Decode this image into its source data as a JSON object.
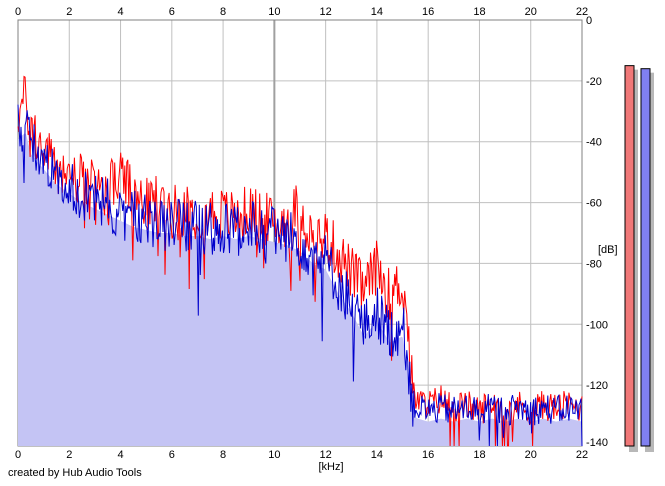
{
  "credit": "created by Hub Audio Tools",
  "colors": {
    "background": "#ffffff",
    "plot_background": "#ffffff",
    "grid": "#c0c0c0",
    "fill": "#c4c4f4",
    "left_channel": "#ff0000",
    "right_channel": "#0000cc",
    "left_meter": "#f07878",
    "right_meter": "#8080f0",
    "meter_shadow": "#b8b8b8"
  },
  "chart_data": {
    "type": "line",
    "xlabel": "[kHz]",
    "ylabel": "[dB]",
    "xlim": [
      0,
      22
    ],
    "ylim": [
      -140,
      0
    ],
    "x_ticks": [
      0,
      2,
      4,
      6,
      8,
      10,
      12,
      14,
      16,
      18,
      20,
      22
    ],
    "y_ticks": [
      0,
      -20,
      -40,
      -60,
      -80,
      -100,
      -120,
      -140
    ],
    "grid": true,
    "series": [
      {
        "channel": "left",
        "color": "#ff0000",
        "x": [
          0,
          0.3,
          0.5,
          1,
          1.5,
          2,
          2.5,
          3,
          3.5,
          4,
          4.5,
          5,
          5.5,
          6,
          6.5,
          7,
          7.5,
          8,
          8.5,
          9,
          9.5,
          10,
          10.5,
          11,
          11.5,
          12,
          12.5,
          13,
          13.5,
          14,
          14.5,
          15,
          15.2,
          15.4,
          15.6,
          16,
          16.5,
          17,
          17.5,
          18,
          18.5,
          19,
          19.5,
          20,
          20.5,
          21,
          21.5,
          22
        ],
        "y": [
          -30,
          -25,
          -35,
          -42,
          -48,
          -50,
          -52,
          -54,
          -55,
          -50,
          -57,
          -60,
          -58,
          -62,
          -61,
          -63,
          -62,
          -63,
          -64,
          -62,
          -64,
          -66,
          -65,
          -60,
          -72,
          -70,
          -76,
          -82,
          -88,
          -80,
          -90,
          -85,
          -100,
          -122,
          -125,
          -126,
          -124,
          -127,
          -126,
          -128,
          -125,
          -127,
          -126,
          -128,
          -126,
          -127,
          -126,
          -127
        ]
      },
      {
        "channel": "right",
        "color": "#0000cc",
        "x": [
          0,
          0.3,
          0.5,
          1,
          1.5,
          2,
          2.5,
          3,
          3.5,
          4,
          4.5,
          5,
          5.5,
          6,
          6.5,
          7,
          7.5,
          8,
          8.5,
          9,
          9.5,
          10,
          10.5,
          11,
          11.5,
          12,
          12.5,
          13,
          13.5,
          14,
          14.5,
          15,
          15.2,
          15.4,
          15.6,
          16,
          16.5,
          17,
          17.5,
          18,
          18.5,
          19,
          19.5,
          20,
          20.5,
          21,
          21.5,
          22
        ],
        "y": [
          -35,
          -33,
          -40,
          -45,
          -50,
          -53,
          -56,
          -58,
          -60,
          -62,
          -64,
          -65,
          -66,
          -66,
          -67,
          -67,
          -68,
          -67,
          -68,
          -67,
          -68,
          -69,
          -70,
          -72,
          -76,
          -78,
          -86,
          -92,
          -100,
          -95,
          -102,
          -100,
          -110,
          -126,
          -127,
          -128,
          -127,
          -128,
          -127,
          -128,
          -127,
          -128,
          -127,
          -128,
          -127,
          -128,
          -127,
          -128
        ]
      }
    ],
    "level_meters": [
      {
        "channel": "left",
        "color": "#f07878",
        "level_db": -15,
        "range_db": [
          -140,
          0
        ]
      },
      {
        "channel": "right",
        "color": "#8080f0",
        "level_db": -16,
        "range_db": [
          -140,
          0
        ]
      }
    ]
  }
}
